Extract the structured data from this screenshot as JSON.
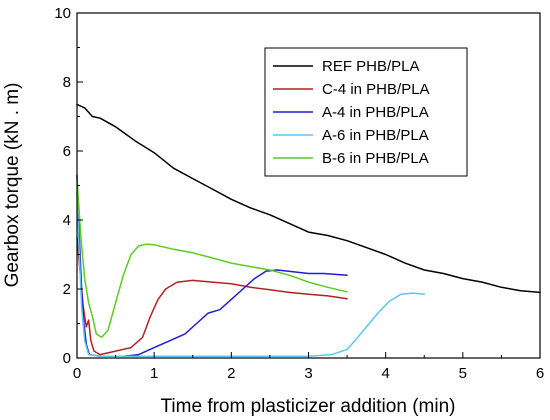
{
  "chart_data": {
    "type": "line",
    "xlabel": "Time from plasticizer addition (min)",
    "ylabel": "Gearbox torque (kN . m)",
    "xlim": [
      0,
      6
    ],
    "ylim": [
      0,
      10
    ],
    "x_ticks": [
      "0",
      "1",
      "2",
      "3",
      "4",
      "5",
      "6"
    ],
    "y_ticks": [
      "0",
      "2",
      "4",
      "6",
      "8",
      "10"
    ],
    "grid": false,
    "legend_position": "top-right",
    "series": [
      {
        "name": "REF PHB/PLA",
        "color": "#000000",
        "points": [
          [
            0,
            7.35
          ],
          [
            0.1,
            7.25
          ],
          [
            0.2,
            7.0
          ],
          [
            0.3,
            6.95
          ],
          [
            0.5,
            6.7
          ],
          [
            0.75,
            6.3
          ],
          [
            1.0,
            5.95
          ],
          [
            1.25,
            5.5
          ],
          [
            1.5,
            5.2
          ],
          [
            1.75,
            4.9
          ],
          [
            2.0,
            4.6
          ],
          [
            2.25,
            4.35
          ],
          [
            2.5,
            4.15
          ],
          [
            2.75,
            3.9
          ],
          [
            3.0,
            3.65
          ],
          [
            3.25,
            3.55
          ],
          [
            3.5,
            3.4
          ],
          [
            3.75,
            3.2
          ],
          [
            4.0,
            3.0
          ],
          [
            4.25,
            2.75
          ],
          [
            4.5,
            2.55
          ],
          [
            4.75,
            2.45
          ],
          [
            5.0,
            2.3
          ],
          [
            5.25,
            2.2
          ],
          [
            5.5,
            2.05
          ],
          [
            5.75,
            1.95
          ],
          [
            6.0,
            1.9
          ]
        ]
      },
      {
        "name": "C-4 in PHB/PLA",
        "color": "#b22222",
        "points": [
          [
            0,
            3.5
          ],
          [
            0.04,
            2.5
          ],
          [
            0.08,
            1.5
          ],
          [
            0.12,
            0.9
          ],
          [
            0.15,
            1.1
          ],
          [
            0.18,
            0.5
          ],
          [
            0.22,
            0.2
          ],
          [
            0.3,
            0.1
          ],
          [
            0.5,
            0.2
          ],
          [
            0.7,
            0.3
          ],
          [
            0.85,
            0.6
          ],
          [
            0.95,
            1.2
          ],
          [
            1.05,
            1.7
          ],
          [
            1.15,
            2.0
          ],
          [
            1.3,
            2.2
          ],
          [
            1.5,
            2.25
          ],
          [
            1.75,
            2.2
          ],
          [
            2.0,
            2.15
          ],
          [
            2.25,
            2.05
          ],
          [
            2.5,
            1.98
          ],
          [
            2.75,
            1.9
          ],
          [
            3.0,
            1.85
          ],
          [
            3.25,
            1.8
          ],
          [
            3.5,
            1.72
          ]
        ]
      },
      {
        "name": "A-4 in PHB/PLA",
        "color": "#1f1fd1",
        "points": [
          [
            0,
            5.3
          ],
          [
            0.03,
            3.5
          ],
          [
            0.06,
            2.0
          ],
          [
            0.09,
            1.0
          ],
          [
            0.12,
            0.4
          ],
          [
            0.16,
            0.1
          ],
          [
            0.3,
            0.05
          ],
          [
            0.6,
            0.05
          ],
          [
            0.8,
            0.1
          ],
          [
            1.0,
            0.3
          ],
          [
            1.2,
            0.5
          ],
          [
            1.4,
            0.7
          ],
          [
            1.55,
            1.0
          ],
          [
            1.7,
            1.3
          ],
          [
            1.85,
            1.4
          ],
          [
            2.0,
            1.7
          ],
          [
            2.15,
            2.0
          ],
          [
            2.3,
            2.3
          ],
          [
            2.45,
            2.52
          ],
          [
            2.6,
            2.55
          ],
          [
            2.8,
            2.5
          ],
          [
            3.0,
            2.45
          ],
          [
            3.2,
            2.45
          ],
          [
            3.5,
            2.4
          ]
        ]
      },
      {
        "name": "A-6 in PHB/PLA",
        "color": "#5ec8e8",
        "points": [
          [
            0,
            4.8
          ],
          [
            0.03,
            3.0
          ],
          [
            0.06,
            1.5
          ],
          [
            0.1,
            0.5
          ],
          [
            0.15,
            0.1
          ],
          [
            0.3,
            0.05
          ],
          [
            1.0,
            0.05
          ],
          [
            2.0,
            0.05
          ],
          [
            2.5,
            0.05
          ],
          [
            3.0,
            0.05
          ],
          [
            3.3,
            0.1
          ],
          [
            3.5,
            0.25
          ],
          [
            3.6,
            0.5
          ],
          [
            3.75,
            0.9
          ],
          [
            3.9,
            1.3
          ],
          [
            4.05,
            1.65
          ],
          [
            4.2,
            1.85
          ],
          [
            4.35,
            1.88
          ],
          [
            4.5,
            1.85
          ]
        ]
      },
      {
        "name": "B-6 in PHB/PLA",
        "color": "#5dcc1e",
        "points": [
          [
            0,
            5.2
          ],
          [
            0.05,
            3.5
          ],
          [
            0.1,
            2.3
          ],
          [
            0.15,
            1.6
          ],
          [
            0.2,
            1.2
          ],
          [
            0.25,
            0.7
          ],
          [
            0.32,
            0.6
          ],
          [
            0.4,
            0.8
          ],
          [
            0.5,
            1.6
          ],
          [
            0.6,
            2.4
          ],
          [
            0.7,
            3.0
          ],
          [
            0.8,
            3.25
          ],
          [
            0.9,
            3.3
          ],
          [
            1.0,
            3.28
          ],
          [
            1.25,
            3.15
          ],
          [
            1.5,
            3.05
          ],
          [
            1.75,
            2.9
          ],
          [
            2.0,
            2.75
          ],
          [
            2.25,
            2.65
          ],
          [
            2.5,
            2.55
          ],
          [
            2.75,
            2.4
          ],
          [
            3.0,
            2.2
          ],
          [
            3.25,
            2.05
          ],
          [
            3.5,
            1.92
          ]
        ]
      }
    ]
  }
}
